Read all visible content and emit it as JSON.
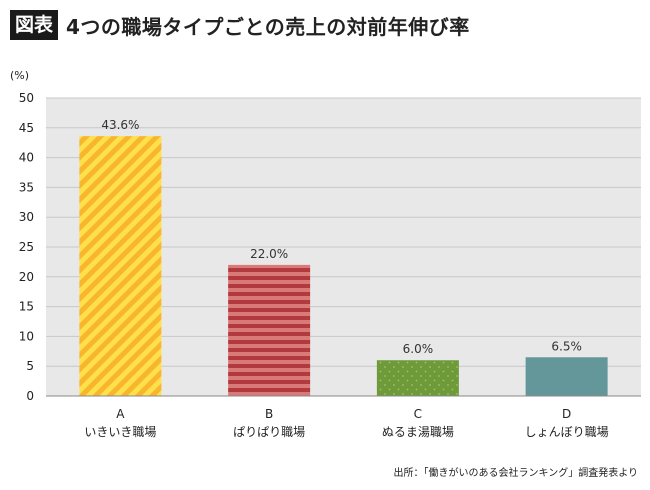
{
  "header": {
    "badge": "図表",
    "title": "4つの職場タイプごとの売上の対前年伸び率"
  },
  "chart_data": {
    "type": "bar",
    "unit_label": "(%)",
    "ylim": [
      0,
      50
    ],
    "yticks": [
      0,
      5,
      10,
      15,
      20,
      25,
      30,
      35,
      40,
      45,
      50
    ],
    "grid": true,
    "categories": [
      {
        "letter": "A",
        "name": "いきいき職場",
        "value": 43.6,
        "label": "43.6%",
        "pattern": "stripe-diagonal",
        "color": "#f7b62e",
        "color2": "#fde04a"
      },
      {
        "letter": "B",
        "name": "ぱりぱり職場",
        "value": 22.0,
        "label": "22.0%",
        "pattern": "stripe-horizontal",
        "color": "#b13a3e",
        "color2": "#d97a78"
      },
      {
        "letter": "C",
        "name": "ぬるま湯職場",
        "value": 6.0,
        "label": "6.0%",
        "pattern": "dots",
        "color": "#6e9a3a",
        "color2": "#9fc26a"
      },
      {
        "letter": "D",
        "name": "しょんぼり職場",
        "value": 6.5,
        "label": "6.5%",
        "pattern": "solid",
        "color": "#64979a",
        "color2": "#64979a"
      }
    ]
  },
  "source": "出所：「働きがいのある会社ランキング」調査発表より"
}
